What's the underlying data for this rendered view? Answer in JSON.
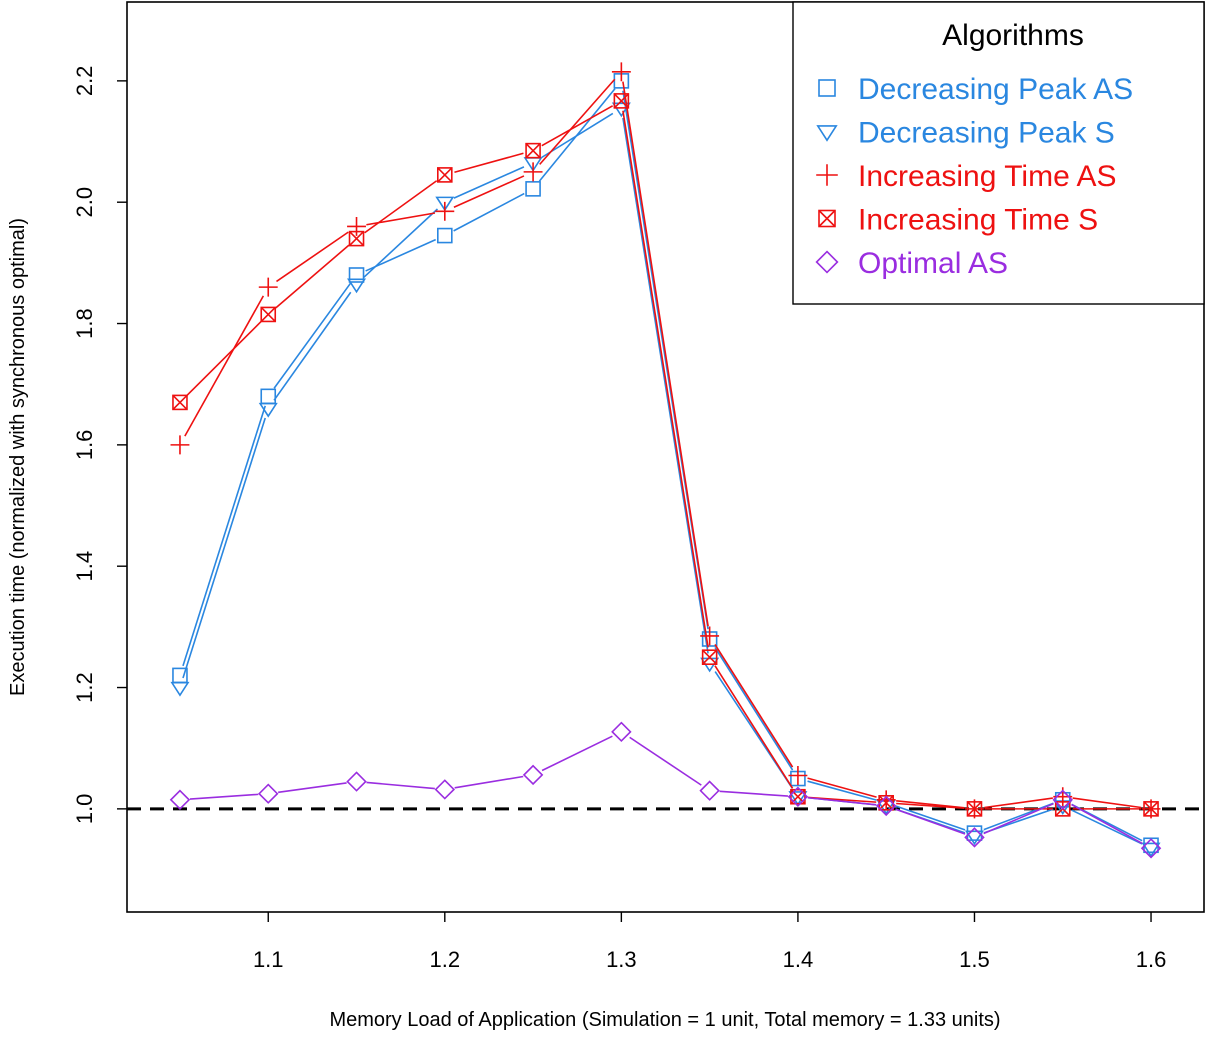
{
  "chart_data": {
    "type": "line",
    "xlabel": "Memory Load of Application (Simulation = 1 unit, Total memory = 1.33 units)",
    "ylabel": "Execution time (normalized with synchronous optimal)",
    "xlim": [
      1.02,
      1.63
    ],
    "ylim": [
      0.83,
      2.33
    ],
    "x_ticks": [
      1.1,
      1.2,
      1.3,
      1.4,
      1.5,
      1.6
    ],
    "y_ticks": [
      1.0,
      1.2,
      1.4,
      1.6,
      1.8,
      2.0,
      2.2
    ],
    "x_tick_labels": [
      "1.1",
      "1.2",
      "1.3",
      "1.4",
      "1.5",
      "1.6"
    ],
    "y_tick_labels": [
      "1.0",
      "1.2",
      "1.4",
      "1.6",
      "1.8",
      "2.0",
      "2.2"
    ],
    "reference_line": {
      "y": 1.0,
      "style": "dashed",
      "color": "#000000"
    },
    "x": [
      1.05,
      1.1,
      1.15,
      1.2,
      1.25,
      1.3,
      1.35,
      1.4,
      1.45,
      1.5,
      1.55,
      1.6
    ],
    "legend": {
      "title": "Algorithms",
      "position": "top-right"
    },
    "series": [
      {
        "name": "Decreasing Peak AS",
        "color": "#2a87e0",
        "marker": "square",
        "values": [
          1.22,
          1.68,
          1.88,
          1.945,
          2.022,
          2.2,
          1.28,
          1.05,
          1.01,
          0.96,
          1.015,
          0.94
        ]
      },
      {
        "name": "Decreasing Peak S",
        "color": "#2a87e0",
        "marker": "triangle-down",
        "values": [
          1.2,
          1.66,
          1.865,
          2.0,
          2.065,
          2.155,
          1.24,
          1.02,
          1.005,
          0.955,
          1.005,
          0.935
        ]
      },
      {
        "name": "Increasing Time AS",
        "color": "#ee1111",
        "marker": "plus",
        "values": [
          1.6,
          1.86,
          1.96,
          1.985,
          2.05,
          2.215,
          1.285,
          1.055,
          1.015,
          1.0,
          1.02,
          1.0
        ]
      },
      {
        "name": "Increasing Time S",
        "color": "#ee1111",
        "marker": "boxed-x",
        "values": [
          1.67,
          1.815,
          1.94,
          2.045,
          2.085,
          2.167,
          1.25,
          1.02,
          1.01,
          1.0,
          1.0,
          1.0
        ]
      },
      {
        "name": "Optimal AS",
        "color": "#9a2de0",
        "marker": "diamond",
        "values": [
          1.015,
          1.025,
          1.045,
          1.032,
          1.056,
          1.127,
          1.03,
          1.02,
          1.005,
          0.953,
          1.015,
          0.935
        ]
      }
    ]
  }
}
